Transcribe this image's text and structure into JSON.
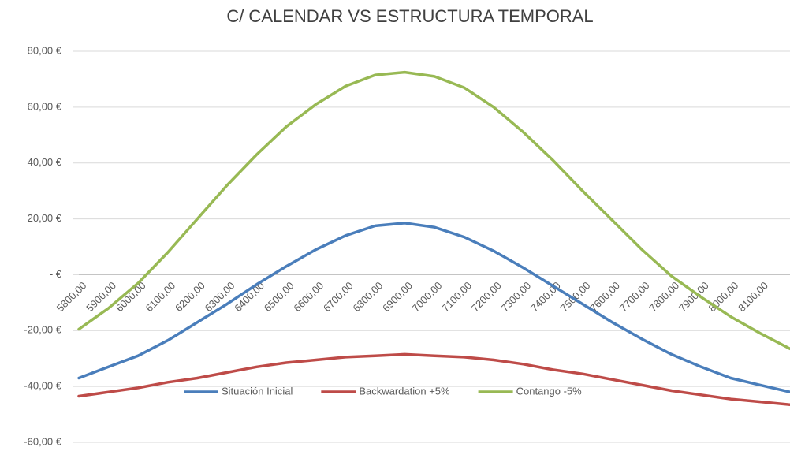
{
  "chart_data": {
    "type": "line",
    "title": "C/ CALENDAR VS ESTRUCTURA TEMPORAL",
    "categories": [
      "5800,00",
      "5900,00",
      "6000,00",
      "6100,00",
      "6200,00",
      "6300,00",
      "6400,00",
      "6500,00",
      "6600,00",
      "6700,00",
      "6800,00",
      "6900,00",
      "7000,00",
      "7100,00",
      "7200,00",
      "7300,00",
      "7400,00",
      "7500,00",
      "7600,00",
      "7700,00",
      "7800,00",
      "7900,00",
      "8000,00",
      "8100,00",
      null
    ],
    "series": [
      {
        "name": "Situación Inicial",
        "color": "#4a7ebb",
        "values": [
          -37,
          -33,
          -29,
          -23.5,
          -17,
          -10.5,
          -3.5,
          3,
          9,
          14,
          17.5,
          18.5,
          17,
          13.5,
          8.5,
          2.5,
          -4,
          -10.5,
          -17,
          -23,
          -28.5,
          -33,
          -37,
          -39.5,
          -42
        ]
      },
      {
        "name": "Backwardation +5%",
        "color": "#be4b48",
        "values": [
          -43.5,
          -42,
          -40.5,
          -38.5,
          -37,
          -35,
          -33,
          -31.5,
          -30.5,
          -29.5,
          -29,
          -28.5,
          -29,
          -29.5,
          -30.5,
          -32,
          -34,
          -35.5,
          -37.5,
          -39.5,
          -41.5,
          -43,
          -44.5,
          -45.5,
          -46.5
        ]
      },
      {
        "name": "Contango -5%",
        "color": "#98b954",
        "values": [
          -19.5,
          -12,
          -3,
          8,
          20,
          32,
          43,
          53,
          61,
          67.5,
          71.5,
          72.5,
          71,
          67,
          60,
          51,
          41,
          30,
          19.5,
          9,
          -0.5,
          -8,
          -15,
          -21,
          -26.5
        ]
      }
    ],
    "ylim": [
      -60,
      80
    ],
    "yticks": [
      {
        "value": -60,
        "label": "-60,00 €"
      },
      {
        "value": -40,
        "label": "-40,00 €"
      },
      {
        "value": -20,
        "label": "-20,00 €"
      },
      {
        "value": 0,
        "label": "-  €"
      },
      {
        "value": 20,
        "label": "20,00 €"
      },
      {
        "value": 40,
        "label": "40,00 €"
      },
      {
        "value": 60,
        "label": "60,00 €"
      },
      {
        "value": 80,
        "label": "80,00 €"
      }
    ],
    "grid": true,
    "legend": "bottom"
  }
}
